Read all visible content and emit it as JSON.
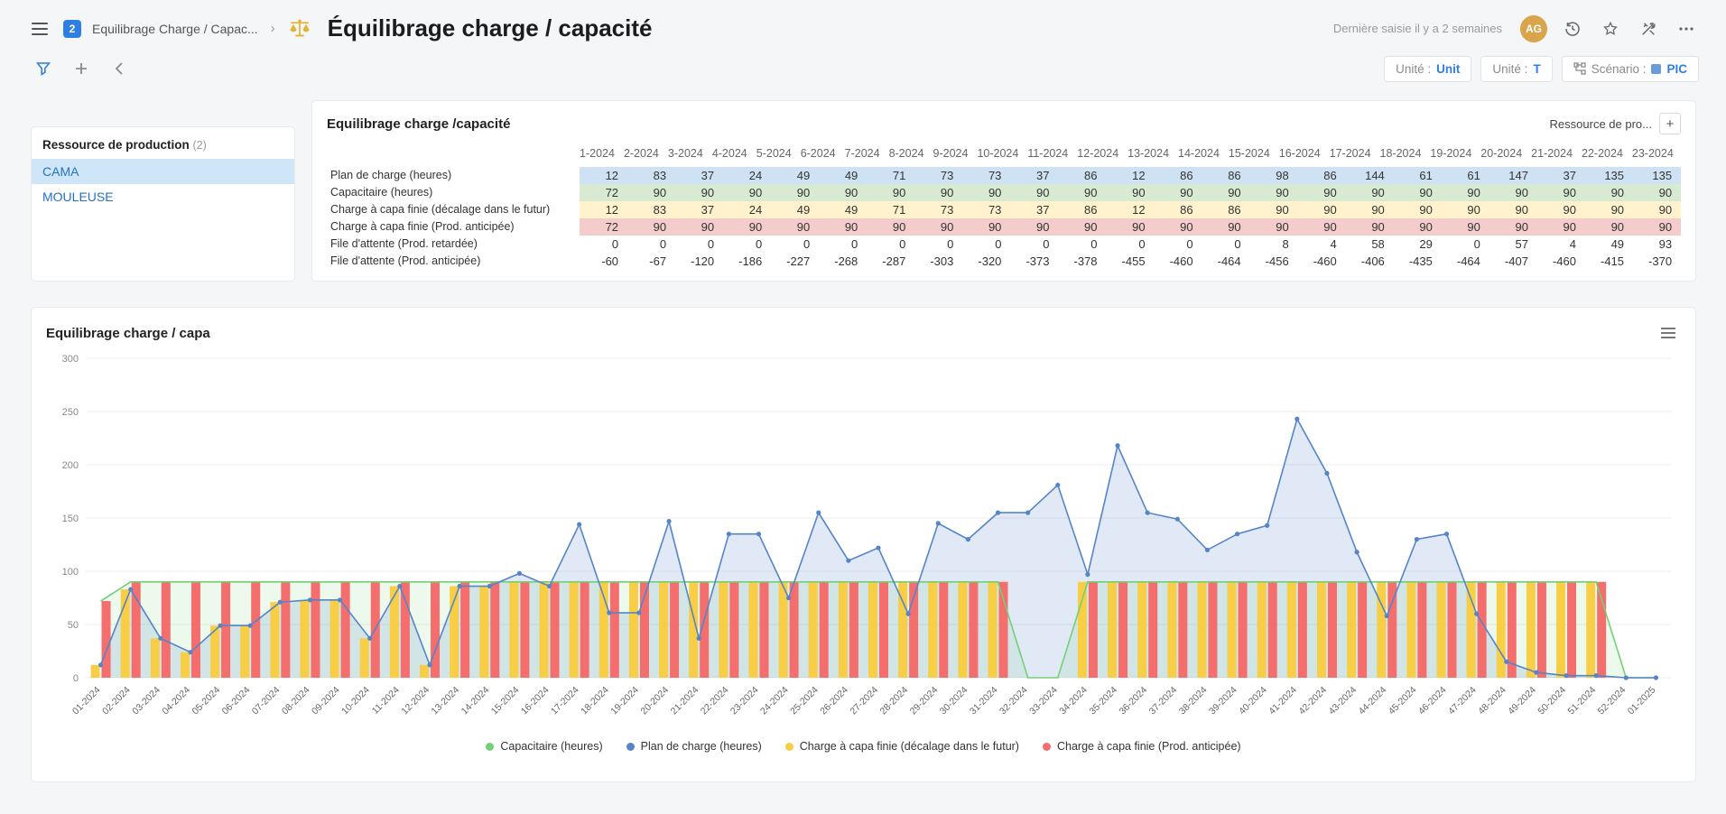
{
  "header": {
    "badge": "2",
    "breadcrumb": "Equilibrage Charge / Capac...",
    "title": "Équilibrage charge / capacité",
    "last_entry": "Dernière saisie il y a 2 semaines",
    "avatar": "AG"
  },
  "toolbar": {
    "unit_unit": {
      "label": "Unité :",
      "value": "Unit"
    },
    "unit_t": {
      "label": "Unité :",
      "value": "T"
    },
    "scenario": {
      "label": "Scénario :",
      "value": "PIC"
    }
  },
  "colors": {
    "accent_blue": "#2f7fe0",
    "row_blue": "#cfe2f3",
    "row_green": "#d9ead3",
    "row_yellow": "#fff2cc",
    "row_red": "#f4cccc"
  },
  "sidebar": {
    "title": "Ressource de production",
    "count": "(2)",
    "items": [
      {
        "label": "CAMA",
        "selected": true
      },
      {
        "label": "MOULEUSE",
        "selected": false
      }
    ]
  },
  "table": {
    "title": "Equilibrage charge /capacité",
    "resource_link": "Ressource de pro...",
    "add_button": "+",
    "columns": [
      "1-2024",
      "2-2024",
      "3-2024",
      "4-2024",
      "5-2024",
      "6-2024",
      "7-2024",
      "8-2024",
      "9-2024",
      "10-2024",
      "11-2024",
      "12-2024",
      "13-2024",
      "14-2024",
      "15-2024",
      "16-2024",
      "17-2024",
      "18-2024",
      "19-2024",
      "20-2024",
      "21-2024",
      "22-2024",
      "23-2024"
    ],
    "rows": [
      {
        "label": "Plan de charge (heures)",
        "band": "#cfe2f3",
        "values": [
          12,
          83,
          37,
          24,
          49,
          49,
          71,
          73,
          73,
          37,
          86,
          12,
          86,
          86,
          98,
          86,
          144,
          61,
          61,
          147,
          37,
          135,
          135
        ]
      },
      {
        "label": "Capacitaire (heures)",
        "band": "#d9ead3",
        "values": [
          72,
          90,
          90,
          90,
          90,
          90,
          90,
          90,
          90,
          90,
          90,
          90,
          90,
          90,
          90,
          90,
          90,
          90,
          90,
          90,
          90,
          90,
          90
        ]
      },
      {
        "label": "Charge à capa finie (décalage dans le futur)",
        "band": "#fff2cc",
        "values": [
          12,
          83,
          37,
          24,
          49,
          49,
          71,
          73,
          73,
          37,
          86,
          12,
          86,
          86,
          90,
          90,
          90,
          90,
          90,
          90,
          90,
          90,
          90
        ]
      },
      {
        "label": "Charge à capa finie (Prod. anticipée)",
        "band": "#f4cccc",
        "values": [
          72,
          90,
          90,
          90,
          90,
          90,
          90,
          90,
          90,
          90,
          90,
          90,
          90,
          90,
          90,
          90,
          90,
          90,
          90,
          90,
          90,
          90,
          90
        ]
      },
      {
        "label": "File d'attente (Prod. retardée)",
        "band": "",
        "values": [
          0,
          0,
          0,
          0,
          0,
          0,
          0,
          0,
          0,
          0,
          0,
          0,
          0,
          0,
          8,
          4,
          58,
          29,
          0,
          57,
          4,
          49,
          93
        ]
      },
      {
        "label": "File d'attente (Prod. anticipée)",
        "band": "",
        "values": [
          -60,
          -67,
          -120,
          -186,
          -227,
          -268,
          -287,
          -303,
          -320,
          -373,
          -378,
          -455,
          -460,
          -464,
          -456,
          -460,
          -406,
          -435,
          -464,
          -407,
          -460,
          -415,
          -370
        ]
      }
    ]
  },
  "chart_data": {
    "type": "mixed",
    "title": "Equilibrage charge / capa",
    "ylim": [
      0,
      300
    ],
    "ytick_step": 50,
    "grid": true,
    "legend_position": "bottom",
    "x": [
      "01-2024",
      "02-2024",
      "03-2024",
      "04-2024",
      "05-2024",
      "06-2024",
      "07-2024",
      "08-2024",
      "09-2024",
      "10-2024",
      "11-2024",
      "12-2024",
      "13-2024",
      "14-2024",
      "15-2024",
      "16-2024",
      "17-2024",
      "18-2024",
      "19-2024",
      "20-2024",
      "21-2024",
      "22-2024",
      "23-2024",
      "24-2024",
      "25-2024",
      "26-2024",
      "27-2024",
      "28-2024",
      "29-2024",
      "30-2024",
      "31-2024",
      "32-2024",
      "33-2024",
      "34-2024",
      "35-2024",
      "36-2024",
      "37-2024",
      "38-2024",
      "39-2024",
      "40-2024",
      "41-2024",
      "42-2024",
      "43-2024",
      "44-2024",
      "45-2024",
      "46-2024",
      "47-2024",
      "48-2024",
      "49-2024",
      "50-2024",
      "51-2024",
      "52-2024",
      "01-2025"
    ],
    "series": [
      {
        "name": "Capacitaire (heures)",
        "type": "area-line",
        "color": "#74d074",
        "values": [
          72,
          90,
          90,
          90,
          90,
          90,
          90,
          90,
          90,
          90,
          90,
          90,
          90,
          90,
          90,
          90,
          90,
          90,
          90,
          90,
          90,
          90,
          90,
          90,
          90,
          90,
          90,
          90,
          90,
          90,
          90,
          0,
          0,
          90,
          90,
          90,
          90,
          90,
          90,
          90,
          90,
          90,
          90,
          90,
          90,
          90,
          90,
          90,
          90,
          90,
          90,
          0,
          0
        ]
      },
      {
        "name": "Plan de charge (heures)",
        "type": "area-line",
        "color": "#5585c7",
        "markers": true,
        "values": [
          12,
          83,
          37,
          24,
          49,
          49,
          71,
          73,
          73,
          37,
          86,
          12,
          86,
          86,
          98,
          86,
          144,
          61,
          61,
          147,
          37,
          135,
          135,
          75,
          155,
          110,
          122,
          60,
          145,
          130,
          155,
          155,
          181,
          97,
          218,
          155,
          149,
          120,
          135,
          143,
          243,
          192,
          118,
          58,
          130,
          135,
          60,
          15,
          5,
          2,
          2,
          0,
          0
        ]
      },
      {
        "name": "Charge à capa finie (décalage dans le futur)",
        "type": "bar",
        "color": "#f7ce46",
        "values": [
          12,
          83,
          37,
          24,
          49,
          49,
          71,
          73,
          73,
          37,
          86,
          12,
          86,
          86,
          90,
          90,
          90,
          90,
          90,
          90,
          90,
          90,
          90,
          90,
          90,
          90,
          90,
          90,
          90,
          90,
          90,
          0,
          0,
          90,
          90,
          90,
          90,
          90,
          90,
          90,
          90,
          90,
          90,
          90,
          90,
          90,
          90,
          90,
          90,
          90,
          90,
          0,
          0
        ]
      },
      {
        "name": "Charge à capa finie (Prod. anticipée)",
        "type": "bar",
        "color": "#f56e6e",
        "values": [
          72,
          90,
          90,
          90,
          90,
          90,
          90,
          90,
          90,
          90,
          90,
          90,
          90,
          90,
          90,
          90,
          90,
          90,
          90,
          90,
          90,
          90,
          90,
          90,
          90,
          90,
          90,
          90,
          90,
          90,
          90,
          0,
          0,
          90,
          90,
          90,
          90,
          90,
          90,
          90,
          90,
          90,
          90,
          90,
          90,
          90,
          90,
          90,
          90,
          90,
          90,
          0,
          0
        ]
      }
    ]
  }
}
